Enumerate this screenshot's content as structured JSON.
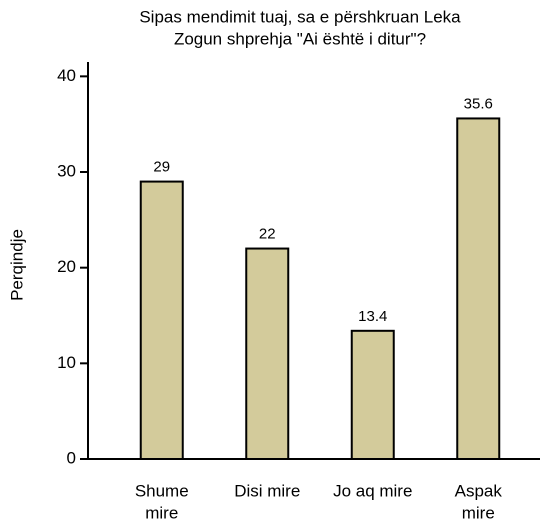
{
  "chart_data": {
    "type": "bar",
    "title": [
      "Sipas mendimit tuaj, sa e përshkruan Leka",
      "Zogun shprehja \"Ai është i ditur\"?"
    ],
    "y_label": "Perqindje",
    "categories": [
      [
        "Shume",
        "mire"
      ],
      [
        "Disi mire"
      ],
      [
        "Jo aq mire"
      ],
      [
        "Aspak",
        "mire"
      ]
    ],
    "values": [
      29,
      22,
      13.4,
      35.6
    ],
    "color": "#d3cb9b",
    "ylim": [
      0,
      41.5
    ],
    "yticks": [
      0,
      10,
      20,
      30,
      40
    ],
    "grid": false
  }
}
